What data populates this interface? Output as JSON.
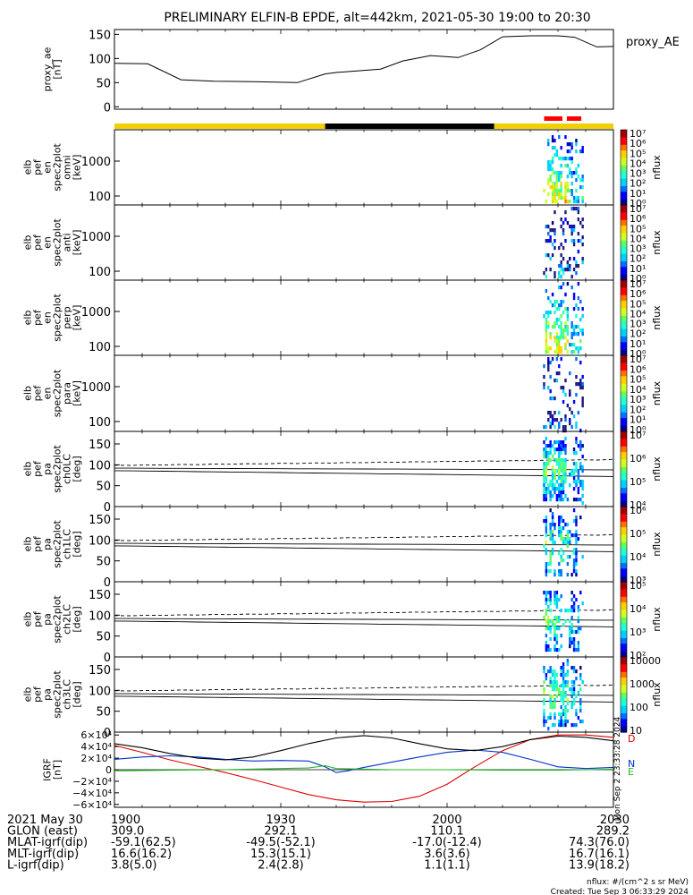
{
  "title": "PRELIMINARY ELFIN-B EPDE, alt=442km, 2021-05-30 19:00 to 20:30",
  "chart_data": [
    {
      "type": "line",
      "panel": "proxy_ae",
      "ylabel": [
        "proxy_ae",
        "[nT]"
      ],
      "legend": "proxy_AE",
      "ylim": [
        -5,
        160
      ],
      "yticks": [
        "150",
        "100",
        "50",
        "0"
      ],
      "x_minutes": [
        0,
        6,
        12,
        18,
        25,
        33,
        38,
        40,
        48,
        52,
        57,
        62,
        66,
        70,
        75,
        80,
        83,
        87,
        90
      ],
      "values": [
        90,
        89,
        56,
        53,
        52,
        50,
        68,
        71,
        78,
        95,
        106,
        102,
        118,
        145,
        147,
        147,
        144,
        124,
        125
      ]
    },
    {
      "type": "bar",
      "panel": "status-bar",
      "segments": [
        {
          "from": 0,
          "to": 38,
          "color": "#f2d000"
        },
        {
          "from": 38,
          "to": 68.5,
          "color": "#000000"
        },
        {
          "from": 68.5,
          "to": 90,
          "color": "#f2d000"
        }
      ],
      "markers": [
        {
          "from": 77.5,
          "to": 80.8,
          "color": "#ff0000"
        },
        {
          "from": 81.6,
          "to": 84.2,
          "color": "#ff0000"
        }
      ]
    },
    {
      "type": "heatmap",
      "panel": "omni",
      "ylabel": [
        "elb",
        "pef",
        "en",
        "spec2plot",
        "omni",
        "[keV]"
      ],
      "ytype": "log",
      "yticks": [
        "1000",
        "100"
      ],
      "colorbar_label": "nflux",
      "colorbar_ticks": [
        "10⁷",
        "10⁶",
        "10⁵",
        "10⁴",
        "10³",
        "10²",
        "10¹",
        "10⁰"
      ]
    },
    {
      "type": "heatmap",
      "panel": "anti",
      "ylabel": [
        "elb",
        "pef",
        "en",
        "spec2plot",
        "anti",
        "[keV]"
      ],
      "ytype": "log",
      "yticks": [
        "1000",
        "100"
      ],
      "colorbar_label": "nflux",
      "colorbar_ticks": [
        "10⁷",
        "10⁶",
        "10⁵",
        "10⁴",
        "10³",
        "10²",
        "10¹",
        "10⁰"
      ]
    },
    {
      "type": "heatmap",
      "panel": "perp",
      "ylabel": [
        "elb",
        "pef",
        "en",
        "spec2plot",
        "perp",
        "[keV]"
      ],
      "ytype": "log",
      "yticks": [
        "1000",
        "100"
      ],
      "colorbar_label": "nflux",
      "colorbar_ticks": [
        "10⁷",
        "10⁶",
        "10⁵",
        "10⁴",
        "10³",
        "10²",
        "10¹",
        "10⁰"
      ]
    },
    {
      "type": "heatmap",
      "panel": "para",
      "ylabel": [
        "elb",
        "pef",
        "en",
        "spec2plot",
        "para",
        "[keV]"
      ],
      "ytype": "log",
      "yticks": [
        "1000",
        "100"
      ],
      "colorbar_label": "nflux",
      "colorbar_ticks": [
        "10⁷",
        "10⁶",
        "10⁵",
        "10⁴",
        "10³",
        "10²",
        "10¹",
        "10⁰"
      ]
    },
    {
      "type": "heatmap",
      "panel": "ch0LC",
      "ylabel": [
        "elb",
        "pef",
        "pa",
        "spec2plot",
        "ch0LC",
        "[deg]"
      ],
      "ytick_values": [
        150,
        100,
        50,
        0
      ],
      "yticks": [
        "150",
        "100",
        "50",
        "0"
      ],
      "colorbar_label": "nflux",
      "colorbar_ticks": [
        "10⁷",
        "10⁶",
        "10⁵",
        "10⁴"
      ]
    },
    {
      "type": "heatmap",
      "panel": "ch1LC",
      "ylabel": [
        "elb",
        "pef",
        "pa",
        "spec2plot",
        "ch1LC",
        "[deg]"
      ],
      "ytick_values": [
        150,
        100,
        50,
        0
      ],
      "yticks": [
        "150",
        "100",
        "50",
        "0"
      ],
      "colorbar_label": "nflux",
      "colorbar_ticks": [
        "10⁶",
        "10⁵",
        "10⁴",
        "10³"
      ]
    },
    {
      "type": "heatmap",
      "panel": "ch2LC",
      "ylabel": [
        "elb",
        "pef",
        "pa",
        "spec2plot",
        "ch2LC",
        "[deg]"
      ],
      "ytick_values": [
        150,
        100,
        50,
        0
      ],
      "yticks": [
        "150",
        "100",
        "50",
        "0"
      ],
      "colorbar_label": "nflux",
      "colorbar_ticks": [
        "10⁵",
        "10⁴",
        "10³",
        "10²"
      ]
    },
    {
      "type": "heatmap",
      "panel": "ch3LC",
      "ylabel": [
        "elb",
        "pef",
        "pa",
        "spec2plot",
        "ch3LC",
        "[deg]"
      ],
      "ytick_values": [
        150,
        100,
        50,
        0
      ],
      "yticks": [
        "150",
        "100",
        "50",
        "0"
      ],
      "colorbar_label": "nflux",
      "colorbar_ticks": [
        "10000",
        "1000",
        "100",
        "10"
      ]
    },
    {
      "type": "line",
      "panel": "igrf",
      "ylabel": [
        "IGRF",
        "[nT]"
      ],
      "ylim": [
        -65000,
        65000
      ],
      "yticks": [
        "6×10⁴",
        "4×10⁴",
        "2×10⁴",
        "0",
        "−2×10⁴",
        "−4×10⁴",
        "−6×10⁴"
      ],
      "ytick_values": [
        60000,
        40000,
        20000,
        0,
        -20000,
        -40000,
        -60000
      ],
      "series": [
        {
          "name": "D",
          "color": "#dd0000",
          "x_minutes": [
            0,
            5,
            10,
            15,
            20,
            25,
            30,
            35,
            40,
            45,
            50,
            55,
            60,
            65,
            70,
            75,
            80,
            85,
            90
          ],
          "values": [
            42000,
            30000,
            17000,
            6000,
            -5000,
            -17000,
            -30000,
            -43000,
            -52000,
            -56000,
            -55000,
            -46000,
            -25000,
            5000,
            33000,
            52000,
            60000,
            60000,
            56000
          ]
        },
        {
          "name": "N",
          "color": "#0033cc",
          "x_minutes": [
            0,
            5,
            10,
            15,
            20,
            25,
            30,
            35,
            38,
            40,
            42,
            45,
            50,
            55,
            60,
            65,
            70,
            75,
            80,
            85,
            90
          ],
          "values": [
            18000,
            22000,
            24000,
            22000,
            18000,
            15000,
            16000,
            15000,
            5000,
            -5000,
            -2000,
            4000,
            13000,
            22000,
            30000,
            34000,
            30000,
            18000,
            5000,
            2000,
            4000
          ]
        },
        {
          "name": "E",
          "color": "#22bb22",
          "x_minutes": [
            0,
            10,
            20,
            30,
            35,
            38,
            40,
            50,
            60,
            70,
            80,
            90
          ],
          "values": [
            -2000,
            -1000,
            0,
            2000,
            3000,
            7000,
            2000,
            0,
            0,
            -1000,
            -1000,
            1000
          ]
        },
        {
          "name": "",
          "color": "#000000",
          "x_minutes": [
            0,
            5,
            10,
            15,
            20,
            25,
            30,
            35,
            40,
            45,
            50,
            55,
            60,
            65,
            70,
            75,
            80,
            85,
            90
          ],
          "values": [
            45000,
            38000,
            28000,
            20000,
            17000,
            22000,
            33000,
            45000,
            55000,
            59000,
            55000,
            45000,
            36000,
            33000,
            40000,
            52000,
            58000,
            56000,
            50000
          ]
        }
      ],
      "legend": [
        "D",
        "N",
        "E"
      ]
    }
  ],
  "x_axis": {
    "range_minutes": [
      0,
      90
    ],
    "ticks": [
      {
        "x": 0,
        "label": "1900"
      },
      {
        "x": 30,
        "label": "1930"
      },
      {
        "x": 60,
        "label": "2000"
      },
      {
        "x": 90,
        "label": "2030"
      }
    ]
  },
  "orbit_table": {
    "rows": [
      {
        "label": "2021 May 30",
        "values": [
          "1900",
          "1930",
          "2000",
          "2030"
        ]
      },
      {
        "label": "GLON (east)",
        "values": [
          "309.0",
          "292.1",
          "110.1",
          "289.2"
        ]
      },
      {
        "label": "MLAT-igrf(dip)",
        "values": [
          "-59.1(62.5)",
          "-49.5(-52.1)",
          "-17.0(-12.4)",
          "74.3(76.0)"
        ]
      },
      {
        "label": "MLT-igrf(dip)",
        "values": [
          "16.6(16.2)",
          "15.3(15.1)",
          "3.6(3.6)",
          "16.7(16.1)"
        ]
      },
      {
        "label": "L-igrf(dip)",
        "values": [
          "3.8(5.0)",
          "2.4(2.8)",
          "1.1(1.1)",
          "13.9(18.2)"
        ]
      }
    ]
  },
  "footer": {
    "units": "nflux: #/(cm^2 s sr MeV)",
    "created": "Created: Tue Sep  3 06:33:29 2024",
    "vertical_stamp": "Mon Sep  2 23:33:28 2024"
  }
}
